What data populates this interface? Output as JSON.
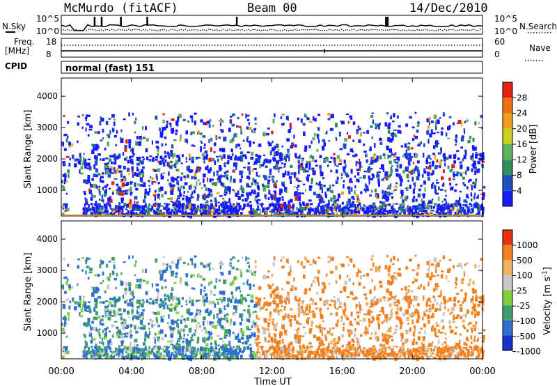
{
  "header": {
    "station": "McMurdo (fitACF)",
    "beam": "Beam 00",
    "date": "14/Dec/2010"
  },
  "noise_panel": {
    "left_label": "N.Sky",
    "right_label": "N.Search",
    "left_ticks": [
      "10^5",
      "10^0"
    ],
    "right_ticks": [
      "10^5",
      "10^0"
    ]
  },
  "freq_panel": {
    "left_label_line1": "Freq.",
    "left_label_line2": "[MHz]",
    "right_label": "Nave",
    "left_ticks": [
      "18",
      "8"
    ],
    "right_ticks": [
      "60",
      "0"
    ]
  },
  "cpid": {
    "label": "CPID",
    "mode": "normal (fast) 151"
  },
  "colors": {
    "power_scale": [
      "#1a1aff",
      "#1f4fbf",
      "#2f8f5f",
      "#5fb05f",
      "#c8d020",
      "#f0a020",
      "#f07010",
      "#e82010"
    ],
    "velocity_scale": [
      "#1a2fd0",
      "#2f6fd0",
      "#3f9f6f",
      "#7fcf3f",
      "#c8c8c8",
      "#f0b060",
      "#f08020",
      "#e83010"
    ]
  },
  "chart_data": [
    {
      "type": "heatmap",
      "title": "Power",
      "xlabel": "",
      "ylabel": "Slant Range [km]",
      "x_ticks": [
        "00:00",
        "04:00",
        "08:00",
        "12:00",
        "16:00",
        "20:00",
        "00:00"
      ],
      "y_ticks": [
        1000,
        2000,
        3000,
        4000
      ],
      "xlim": [
        0,
        24
      ],
      "ylim": [
        180,
        4580
      ],
      "colorbar": {
        "label": "Power [dB]",
        "ticks": [
          4,
          8,
          12,
          16,
          20,
          24,
          28
        ],
        "range": [
          0,
          32
        ]
      }
    },
    {
      "type": "heatmap",
      "title": "Velocity",
      "xlabel": "Time UT",
      "ylabel": "Slant Range [km]",
      "x_ticks": [
        "00:00",
        "04:00",
        "08:00",
        "12:00",
        "16:00",
        "20:00",
        "00:00"
      ],
      "y_ticks": [
        1000,
        2000,
        3000,
        4000
      ],
      "xlim": [
        0,
        24
      ],
      "ylim": [
        180,
        4580
      ],
      "colorbar": {
        "label": "Velocity [m s^-1]",
        "ticks": [
          "1000",
          "500",
          "100",
          "25",
          "-25",
          "-100",
          "-500",
          "-1000"
        ]
      }
    }
  ]
}
